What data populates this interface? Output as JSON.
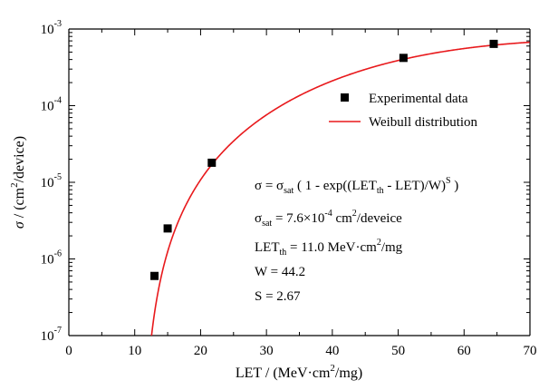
{
  "chart_data": {
    "type": "scatter",
    "title": "",
    "xlabel": "LET / (MeV·cm²/mg)",
    "ylabel": "σ / (cm²/device)",
    "xlim": [
      0,
      70
    ],
    "ylim": [
      1e-07,
      0.001
    ],
    "yscale": "log",
    "grid": false,
    "legend_position": "right",
    "x_ticks": [
      "0",
      "10",
      "20",
      "30",
      "40",
      "50",
      "60",
      "70"
    ],
    "y_ticks": [
      {
        "base": "10",
        "exp": "-7"
      },
      {
        "base": "10",
        "exp": "-6"
      },
      {
        "base": "10",
        "exp": "-5"
      },
      {
        "base": "10",
        "exp": "-4"
      },
      {
        "base": "10",
        "exp": "-3"
      }
    ],
    "series": [
      {
        "name": "Experimental data",
        "kind": "scatter",
        "marker": "square",
        "color": "#000000",
        "points": [
          {
            "x": 13.0,
            "y": 6e-07
          },
          {
            "x": 15.0,
            "y": 2.5e-06
          },
          {
            "x": 21.7,
            "y": 1.8e-05
          },
          {
            "x": 50.8,
            "y": 0.00042
          },
          {
            "x": 64.5,
            "y": 0.00064
          }
        ]
      },
      {
        "name": "Weibull distribution",
        "kind": "line",
        "color": "#e8191c",
        "model": {
          "sigma_sat": 0.00076,
          "let_th": 11.0,
          "w": 44.2,
          "s": 2.67
        }
      }
    ],
    "annotation": {
      "formula": {
        "p1": "σ = σ",
        "p1_sub": "sat",
        "p2": " ( 1 - exp((LET",
        "p2_sub": "th",
        "p3": " - LET)/W)",
        "p3_sup": "S",
        "p4": " )"
      },
      "sat_line": {
        "p1": "σ",
        "p1_sub": "sat",
        "p2": " = 7.6×10",
        "p2_sup": "-4",
        "p3": " cm",
        "p3_sup": "2",
        "p4": "/deveice"
      },
      "let_line": {
        "p1": "LET",
        "p1_sub": "th",
        "p2": " = 11.0 MeV·cm",
        "p2_sup": "2",
        "p3": "/mg"
      },
      "w_line": "W = 44.2",
      "s_line": "S = 2.67"
    },
    "labels": {
      "x_axis": {
        "p1": "LET / (MeV·cm",
        "p1_sup": "2",
        "p2": "/mg)"
      },
      "y_axis": {
        "p1": "σ",
        "p2": " / (cm",
        "p2_sup": "2",
        "p3": "/device)"
      }
    }
  }
}
